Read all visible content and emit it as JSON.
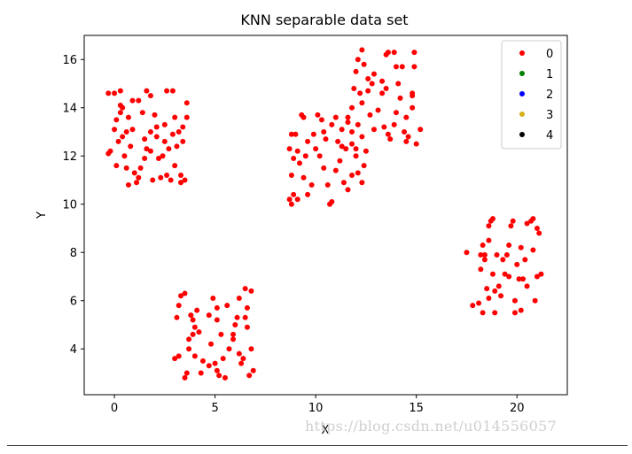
{
  "chart_data": {
    "type": "scatter",
    "title": "KNN separable data set",
    "xlabel": "X",
    "ylabel": "Y",
    "xlim": [
      -1.5,
      22.5
    ],
    "ylim": [
      2.1,
      17.0
    ],
    "xticks": [
      0,
      5,
      10,
      15,
      20
    ],
    "yticks": [
      4,
      6,
      8,
      10,
      12,
      14,
      16
    ],
    "grid": false,
    "legend": {
      "position": "top-right",
      "entries": [
        {
          "label": "0",
          "color": "#ff0000"
        },
        {
          "label": "1",
          "color": "#008000"
        },
        {
          "label": "2",
          "color": "#0000ff"
        },
        {
          "label": "3",
          "color": "#d4b11a"
        },
        {
          "label": "4",
          "color": "#000000"
        }
      ]
    },
    "series": [
      {
        "name": "0",
        "color": "#ff0000",
        "points": [
          [
            -0.3,
            14.6
          ],
          [
            0.0,
            14.6
          ],
          [
            0.3,
            14.7
          ],
          [
            0.3,
            14.1
          ],
          [
            0.4,
            14.0
          ],
          [
            0.1,
            13.5
          ],
          [
            0.0,
            13.1
          ],
          [
            0.2,
            12.6
          ],
          [
            -0.2,
            12.2
          ],
          [
            -0.3,
            12.1
          ],
          [
            0.1,
            11.6
          ],
          [
            0.5,
            12.0
          ],
          [
            0.6,
            11.5
          ],
          [
            0.8,
            12.4
          ],
          [
            0.6,
            13.0
          ],
          [
            0.7,
            13.6
          ],
          [
            0.9,
            13.1
          ],
          [
            1.0,
            11.3
          ],
          [
            1.2,
            11.1
          ],
          [
            1.3,
            11.5
          ],
          [
            1.5,
            11.9
          ],
          [
            1.6,
            12.3
          ],
          [
            1.8,
            13.0
          ],
          [
            1.4,
            13.8
          ],
          [
            1.2,
            14.3
          ],
          [
            1.6,
            14.7
          ],
          [
            1.8,
            14.5
          ],
          [
            2.0,
            13.7
          ],
          [
            2.1,
            12.8
          ],
          [
            2.2,
            11.9
          ],
          [
            2.3,
            11.1
          ],
          [
            2.5,
            12.6
          ],
          [
            2.5,
            13.3
          ],
          [
            2.6,
            14.7
          ],
          [
            2.9,
            14.7
          ],
          [
            3.0,
            13.6
          ],
          [
            2.9,
            12.9
          ],
          [
            2.7,
            12.3
          ],
          [
            2.6,
            11.2
          ],
          [
            2.8,
            11.0
          ],
          [
            3.1,
            12.4
          ],
          [
            3.2,
            13.0
          ],
          [
            3.4,
            12.6
          ],
          [
            3.3,
            11.2
          ],
          [
            3.5,
            11.0
          ],
          [
            3.3,
            10.9
          ],
          [
            3.6,
            13.6
          ],
          [
            3.6,
            14.2
          ],
          [
            0.7,
            10.8
          ],
          [
            1.1,
            10.9
          ],
          [
            1.9,
            11.0
          ],
          [
            0.3,
            13.8
          ],
          [
            0.9,
            14.3
          ],
          [
            1.8,
            12.2
          ],
          [
            2.4,
            12.0
          ],
          [
            3.0,
            11.6
          ],
          [
            2.1,
            13.2
          ],
          [
            1.5,
            12.7
          ],
          [
            0.4,
            12.8
          ],
          [
            3.4,
            13.2
          ],
          [
            3.0,
            3.6
          ],
          [
            3.2,
            3.7
          ],
          [
            3.1,
            5.3
          ],
          [
            3.2,
            5.8
          ],
          [
            3.3,
            6.2
          ],
          [
            3.5,
            6.3
          ],
          [
            3.5,
            2.8
          ],
          [
            3.6,
            3.0
          ],
          [
            3.7,
            4.0
          ],
          [
            3.7,
            4.4
          ],
          [
            3.9,
            5.2
          ],
          [
            3.8,
            5.4
          ],
          [
            4.1,
            5.6
          ],
          [
            4.0,
            4.9
          ],
          [
            4.2,
            4.7
          ],
          [
            4.0,
            3.7
          ],
          [
            4.4,
            3.5
          ],
          [
            4.7,
            3.3
          ],
          [
            4.8,
            4.2
          ],
          [
            4.7,
            5.4
          ],
          [
            4.9,
            6.1
          ],
          [
            5.1,
            5.7
          ],
          [
            5.1,
            5.2
          ],
          [
            5.3,
            4.6
          ],
          [
            5.0,
            3.4
          ],
          [
            5.1,
            3.1
          ],
          [
            5.2,
            2.9
          ],
          [
            5.5,
            2.8
          ],
          [
            5.4,
            3.6
          ],
          [
            5.6,
            5.8
          ],
          [
            5.9,
            4.6
          ],
          [
            5.9,
            4.4
          ],
          [
            6.1,
            5.3
          ],
          [
            6.2,
            6.1
          ],
          [
            6.2,
            3.8
          ],
          [
            6.3,
            3.4
          ],
          [
            6.4,
            3.6
          ],
          [
            6.6,
            4.9
          ],
          [
            6.6,
            5.7
          ],
          [
            6.5,
            6.5
          ],
          [
            6.8,
            6.4
          ],
          [
            6.8,
            4.0
          ],
          [
            6.9,
            3.1
          ],
          [
            6.7,
            2.9
          ],
          [
            6.5,
            5.3
          ],
          [
            4.3,
            3.0
          ],
          [
            3.9,
            4.6
          ],
          [
            5.7,
            4.0
          ],
          [
            6.0,
            5.0
          ],
          [
            8.7,
            10.2
          ],
          [
            8.8,
            10.0
          ],
          [
            8.9,
            10.4
          ],
          [
            9.1,
            10.2
          ],
          [
            8.8,
            11.2
          ],
          [
            8.9,
            11.9
          ],
          [
            8.7,
            12.3
          ],
          [
            8.8,
            12.9
          ],
          [
            9.0,
            12.9
          ],
          [
            9.1,
            12.2
          ],
          [
            9.3,
            13.7
          ],
          [
            9.4,
            13.6
          ],
          [
            9.2,
            11.7
          ],
          [
            9.4,
            11.1
          ],
          [
            9.6,
            10.4
          ],
          [
            9.8,
            10.8
          ],
          [
            10.0,
            12.3
          ],
          [
            9.9,
            12.9
          ],
          [
            10.1,
            13.7
          ],
          [
            10.3,
            13.5
          ],
          [
            10.2,
            12.0
          ],
          [
            10.4,
            11.5
          ],
          [
            10.6,
            10.8
          ],
          [
            10.8,
            10.1
          ],
          [
            10.7,
            10.0
          ],
          [
            10.5,
            12.7
          ],
          [
            10.8,
            13.3
          ],
          [
            11.0,
            13.6
          ],
          [
            11.1,
            12.6
          ],
          [
            11.2,
            11.8
          ],
          [
            11.4,
            10.9
          ],
          [
            11.6,
            10.6
          ],
          [
            11.8,
            11.2
          ],
          [
            11.5,
            12.3
          ],
          [
            11.3,
            13.1
          ],
          [
            11.6,
            13.6
          ],
          [
            11.8,
            13.0
          ],
          [
            12.0,
            12.3
          ],
          [
            12.1,
            11.3
          ],
          [
            12.3,
            10.9
          ],
          [
            12.4,
            11.6
          ],
          [
            12.5,
            12.2
          ],
          [
            12.3,
            12.8
          ],
          [
            12.1,
            13.3
          ],
          [
            11.8,
            14.0
          ],
          [
            11.9,
            14.8
          ],
          [
            12.0,
            15.5
          ],
          [
            12.1,
            16.0
          ],
          [
            12.3,
            16.4
          ],
          [
            12.4,
            15.8
          ],
          [
            12.6,
            15.2
          ],
          [
            12.8,
            15.0
          ],
          [
            12.6,
            14.7
          ],
          [
            12.3,
            14.2
          ],
          [
            12.7,
            13.7
          ],
          [
            12.9,
            13.1
          ],
          [
            13.1,
            13.9
          ],
          [
            13.3,
            14.6
          ],
          [
            13.3,
            15.1
          ],
          [
            13.5,
            14.8
          ],
          [
            13.4,
            13.2
          ],
          [
            13.6,
            12.9
          ],
          [
            13.7,
            12.7
          ],
          [
            13.9,
            13.3
          ],
          [
            14.0,
            13.8
          ],
          [
            14.2,
            14.4
          ],
          [
            14.1,
            15.0
          ],
          [
            14.0,
            15.7
          ],
          [
            13.5,
            16.2
          ],
          [
            13.6,
            16.3
          ],
          [
            13.9,
            16.3
          ],
          [
            14.3,
            15.7
          ],
          [
            14.5,
            13.6
          ],
          [
            14.6,
            12.8
          ],
          [
            14.5,
            12.6
          ],
          [
            14.8,
            14.5
          ],
          [
            14.8,
            14.6
          ],
          [
            14.9,
            15.7
          ],
          [
            14.9,
            16.3
          ],
          [
            15.0,
            12.5
          ],
          [
            15.2,
            13.1
          ],
          [
            14.8,
            14.0
          ],
          [
            14.4,
            13.0
          ],
          [
            12.9,
            15.4
          ],
          [
            11.0,
            11.4
          ],
          [
            10.4,
            13.0
          ],
          [
            9.6,
            12.6
          ],
          [
            9.5,
            12.0
          ],
          [
            12.0,
            12.0
          ],
          [
            11.3,
            12.4
          ],
          [
            12.2,
            14.6
          ],
          [
            11.8,
            12.5
          ],
          [
            11.6,
            13.4
          ],
          [
            17.5,
            8.0
          ],
          [
            17.8,
            5.8
          ],
          [
            18.1,
            5.9
          ],
          [
            18.2,
            7.3
          ],
          [
            18.2,
            7.9
          ],
          [
            18.3,
            8.3
          ],
          [
            18.3,
            5.5
          ],
          [
            18.5,
            6.5
          ],
          [
            18.4,
            7.7
          ],
          [
            18.6,
            8.5
          ],
          [
            18.6,
            9.1
          ],
          [
            18.7,
            9.3
          ],
          [
            18.8,
            9.4
          ],
          [
            18.8,
            7.1
          ],
          [
            18.9,
            6.4
          ],
          [
            18.9,
            5.5
          ],
          [
            19.0,
            7.9
          ],
          [
            19.1,
            6.6
          ],
          [
            19.2,
            6.2
          ],
          [
            19.3,
            7.7
          ],
          [
            19.4,
            7.1
          ],
          [
            19.5,
            7.9
          ],
          [
            19.6,
            8.3
          ],
          [
            19.7,
            9.1
          ],
          [
            19.8,
            9.3
          ],
          [
            19.9,
            5.5
          ],
          [
            19.9,
            6.0
          ],
          [
            20.0,
            7.5
          ],
          [
            20.1,
            6.9
          ],
          [
            20.2,
            5.6
          ],
          [
            20.3,
            6.9
          ],
          [
            20.4,
            7.7
          ],
          [
            20.5,
            6.6
          ],
          [
            20.5,
            9.2
          ],
          [
            20.7,
            9.3
          ],
          [
            20.8,
            9.4
          ],
          [
            20.8,
            8.1
          ],
          [
            20.9,
            6.0
          ],
          [
            21.0,
            7.0
          ],
          [
            21.1,
            8.8
          ],
          [
            21.2,
            7.1
          ],
          [
            21.0,
            9.0
          ],
          [
            18.6,
            6.1
          ],
          [
            19.6,
            7.0
          ],
          [
            20.2,
            8.2
          ],
          [
            18.4,
            7.9
          ]
        ]
      },
      {
        "name": "1",
        "color": "#008000",
        "points": []
      },
      {
        "name": "2",
        "color": "#0000ff",
        "points": []
      },
      {
        "name": "3",
        "color": "#d4b11a",
        "points": []
      },
      {
        "name": "4",
        "color": "#000000",
        "points": []
      }
    ]
  },
  "watermark": "https://blog.csdn.net/u014556057"
}
